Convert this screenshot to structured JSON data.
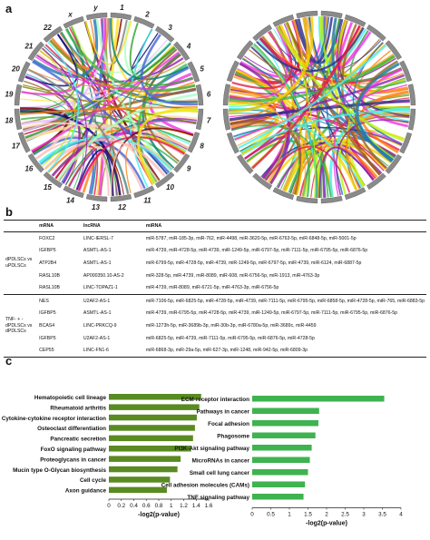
{
  "panel_labels": {
    "a": "a",
    "b": "b",
    "c": "c"
  },
  "circos": {
    "left_labels": [
      "x",
      "y",
      "1",
      "2",
      "3",
      "4",
      "5",
      "6",
      "7",
      "8",
      "9",
      "10",
      "11",
      "12",
      "13",
      "14",
      "15",
      "16",
      "17",
      "18",
      "19",
      "20",
      "21",
      "22"
    ],
    "link_colors": [
      "#e6194b",
      "#3cb44b",
      "#ffe119",
      "#4363d8",
      "#f58231",
      "#911eb4",
      "#46f0f0",
      "#f032e6",
      "#bcf60c",
      "#fabebe",
      "#008080",
      "#e6beff",
      "#9a6324",
      "#800000",
      "#aaffc3",
      "#808000",
      "#ffd8b1",
      "#000075",
      "#808080",
      "#2ca02c",
      "#ff7f0e",
      "#1f77b4"
    ],
    "right_link_colors": [
      "#f5d000",
      "#f5a623",
      "#1f77b4",
      "#e6194b",
      "#3cb44b",
      "#46f0f0",
      "#911eb4",
      "#f032e6",
      "#ff7f0e",
      "#2c2c8a",
      "#9a6324",
      "#bcf60c"
    ]
  },
  "table": {
    "headers": {
      "mrna": "mRNA",
      "lncrna": "lncRNA",
      "mirna": "miRNA"
    },
    "groups": [
      {
        "label": "dPDLSCs vs uPDLSCs",
        "rows": [
          {
            "mrna": "FOXC2",
            "lncrna": "LINC-IERSL-7",
            "mirna": "miR-5787, miR-185-3p, miR-762, miR-4498, miR-3620-5p, miR-6763-5p, miR-6848-5p, miR-5001-5p"
          },
          {
            "mrna": "IGFBP5",
            "lncrna": "ASMTL-AS-1",
            "mirna": "miR-4739, miR-4728-5p, miR-4739, miR-1249-5p, miR-6797-5p, miR-7111-5p, miR-6795-5p, miR-6876-5p"
          },
          {
            "mrna": "ATP2B4",
            "lncrna": "ASMTL-AS-1",
            "mirna": "miR-6799-5p, miR-4728-5p, miR-4739, miR-1249-5p, miR-6797-5p, miR-4739, miR-6124, miR-6887-5p"
          },
          {
            "mrna": "RASL10B",
            "lncrna": "AP000350.10-AS-2",
            "mirna": "miR-328-5p, miR-4739, miR-8089, miR-608, miR-6756-5p, miR-1913, miR-4763-3p"
          },
          {
            "mrna": "RASL10B",
            "lncrna": "LINC-TOPAZ1-1",
            "mirna": "miR-4739, miR-8089, miR-6721-5p, miR-4763-3p, miR-6756-5p"
          }
        ]
      },
      {
        "label": "TNF- + -dPDLSCs vs dPDLSCs",
        "rows": [
          {
            "mrna": "NES",
            "lncrna": "U2AF2-AS-1",
            "mirna": "miR-7106-5p, miR-6825-5p, miR-4728-5p, miR-4739, miR-7111-5p, miR-6795-5p, miR-6858-5p, miR-4728-5p, miR-765, miR-6883-5p"
          },
          {
            "mrna": "IGFBP5",
            "lncrna": "ASMTL-AS-1",
            "mirna": "miR-4739, miR-6795-5p, miR-4728-5p, miR-4739, miR-1249-5p, miR-6797-5p, miR-7111-5p, miR-6795-5p, miR-6876-5p"
          },
          {
            "mrna": "BCAS4",
            "lncrna": "LINC-PRKCQ-9",
            "mirna": "miR-1273h-5p, miR-3689b-3p, miR-30b-3p, miR-6780a-5p, miR-3689c, miR-4459"
          },
          {
            "mrna": "IGFBP5",
            "lncrna": "U2AF2-AS-1",
            "mirna": "miR-6825-5p, miR-4739, miR-7111-5p, miR-6795-5p, miR-6876-5p, miR-4728-5p"
          },
          {
            "mrna": "CEP55",
            "lncrna": "LINC-FN1-6",
            "mirna": "miR-6868-3p, miR-29a-5p, miR-627-3p, miR-1248, miR-942-5p, miR-6809-3p"
          }
        ]
      }
    ]
  },
  "chart_data": [
    {
      "type": "bar",
      "orientation": "horizontal",
      "categories": [
        "Hematopoietic cell lineage",
        "Rheumatoid arthritis",
        "Cytokine-cytokine receptor interaction",
        "Osteoclast differentiation",
        "Pancreatic secretion",
        "FoxO signaling pathway",
        "Proteoglycans in cancer",
        "Mucin type O-Glycan biosynthesis",
        "Cell cycle",
        "Axon guidance"
      ],
      "values": [
        1.48,
        1.45,
        1.41,
        1.38,
        1.35,
        1.32,
        1.15,
        1.1,
        0.98,
        0.93
      ],
      "xlabel": "-log2(p-value)",
      "xlim": [
        0,
        1.6
      ],
      "xticks": [
        "0",
        "0.2",
        "0.4",
        "0.6",
        "0.8",
        "1",
        "1.2",
        "1.4",
        "1.6"
      ],
      "color": "#5a8a22"
    },
    {
      "type": "bar",
      "orientation": "horizontal",
      "categories": [
        "ECM-receptor interaction",
        "Pathways in cancer",
        "Focal adhesion",
        "Phagosome",
        "PI3K-Akt signaling pathway",
        "MicroRNAs in cancer",
        "Small cell lung cancer",
        "Cell adhesion molecules (CAMs)",
        "TNF signaling pathway"
      ],
      "values": [
        3.55,
        1.8,
        1.78,
        1.7,
        1.6,
        1.55,
        1.5,
        1.42,
        1.38
      ],
      "xlabel": "-log2(p-value)",
      "xlim": [
        0,
        4
      ],
      "xticks": [
        "0",
        "0.5",
        "1",
        "1.5",
        "2",
        "2.5",
        "3",
        "3.5",
        "4"
      ],
      "color": "#3fb34f"
    }
  ]
}
